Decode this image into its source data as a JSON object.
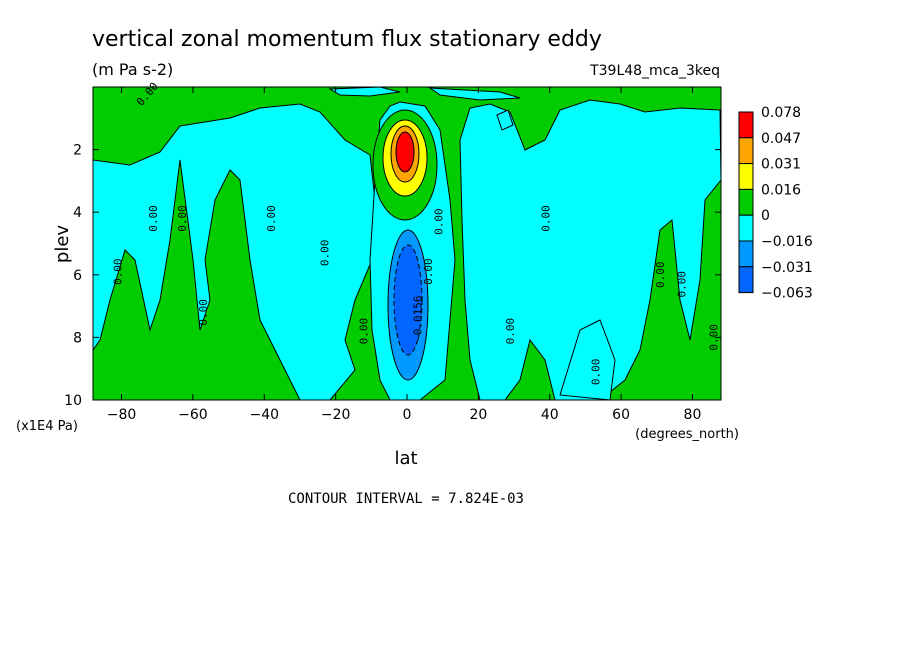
{
  "chart_data": {
    "type": "heatmap",
    "subtype": "filled-contour",
    "title": "vertical zonal momentum flux stationary eddy",
    "units": "(m Pa s-2)",
    "dataset_label": "T39L48_mca_3keq",
    "xlabel": "lat",
    "x_units": "(degrees_north)",
    "ylabel": "plev",
    "y_units": "(x1E4 Pa)",
    "xlim": [
      -88,
      88
    ],
    "ylim": [
      10,
      0
    ],
    "y_inverted": true,
    "x_ticks": [
      -80,
      -60,
      -40,
      -20,
      0,
      20,
      40,
      60,
      80
    ],
    "y_ticks": [
      2,
      4,
      6,
      8,
      10
    ],
    "contour_interval_text": "CONTOUR INTERVAL = 7.824E-03",
    "legend": {
      "position": "right",
      "labels": [
        "0.078",
        "0.047",
        "0.031",
        "0.016",
        "0",
        "−0.016",
        "−0.031",
        "−0.063"
      ],
      "colors": [
        "#ff0000",
        "#ffa500",
        "#ffff00",
        "#00cc00",
        "#00ffff",
        "#0099ff",
        "#0066ff"
      ]
    },
    "colors": {
      "positive_small": "#00cc00",
      "negative_small": "#00ffff",
      "negative_mid": "#0099ff",
      "negative_strong": "#0066ff",
      "positive_mid": "#ffff00",
      "positive_high": "#ffa500",
      "positive_max": "#ff0000"
    },
    "contour_labels": [
      {
        "text": "0.00",
        "lat": -72,
        "plev": 0.3,
        "angle": -50
      },
      {
        "text": "0.00",
        "lat": -80,
        "plev": 5.9,
        "angle": -90
      },
      {
        "text": "0.00",
        "lat": -70,
        "plev": 4.2,
        "angle": -90
      },
      {
        "text": "0.00",
        "lat": -62,
        "plev": 4.2,
        "angle": -90
      },
      {
        "text": "0.00",
        "lat": -56,
        "plev": 7.2,
        "angle": -90
      },
      {
        "text": "0.00",
        "lat": -37,
        "plev": 4.2,
        "angle": -90
      },
      {
        "text": "0.00",
        "lat": -22,
        "plev": 5.3,
        "angle": -90
      },
      {
        "text": "0.00",
        "lat": -11,
        "plev": 7.8,
        "angle": -90
      },
      {
        "text": "0.00",
        "lat": 7,
        "plev": 5.9,
        "angle": -90
      },
      {
        "text": "0.00",
        "lat": 10,
        "plev": 4.3,
        "angle": -90
      },
      {
        "text": "-0.0156",
        "lat": 4,
        "plev": 7.4,
        "angle": -90
      },
      {
        "text": "0.00",
        "lat": 30,
        "plev": 7.8,
        "angle": -90
      },
      {
        "text": "0.00",
        "lat": 40,
        "plev": 4.2,
        "angle": -90
      },
      {
        "text": "0.00",
        "lat": 54,
        "plev": 9.1,
        "angle": -90
      },
      {
        "text": "0.00",
        "lat": 72,
        "plev": 6.0,
        "angle": -90
      },
      {
        "text": "0.00",
        "lat": 78,
        "plev": 6.3,
        "angle": -90
      },
      {
        "text": "0.00",
        "lat": 87,
        "plev": 8.0,
        "angle": -90
      }
    ]
  }
}
